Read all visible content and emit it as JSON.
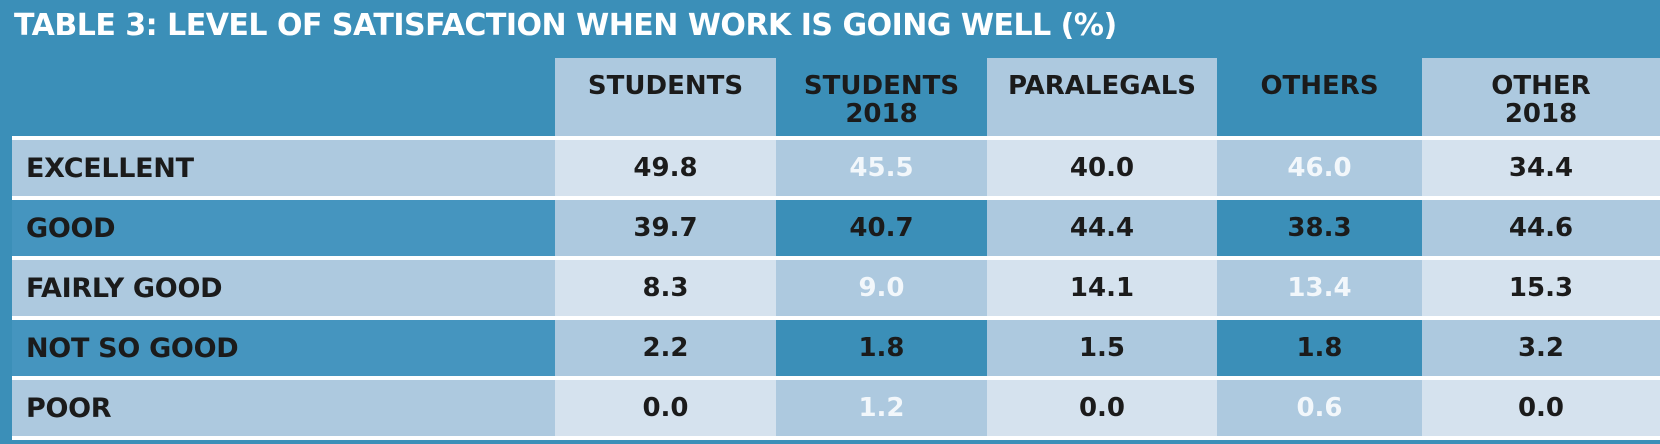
{
  "title": "TABLE 3: LEVEL OF SATISFACTION WHEN WORK IS GOING WELL (%)",
  "chart_data": {
    "type": "table",
    "title": "TABLE 3: LEVEL OF SATISFACTION WHEN WORK IS GOING WELL (%)",
    "columns": [
      {
        "line1": "STUDENTS",
        "line2": ""
      },
      {
        "line1": "STUDENTS",
        "line2": "2018"
      },
      {
        "line1": "PARALEGALS",
        "line2": ""
      },
      {
        "line1": "OTHERS",
        "line2": ""
      },
      {
        "line1": "OTHER",
        "line2": "2018"
      }
    ],
    "rows": [
      {
        "label": "EXCELLENT",
        "values": [
          "49.8",
          "45.5",
          "40.0",
          "46.0",
          "34.4"
        ]
      },
      {
        "label": "GOOD",
        "values": [
          "39.7",
          "40.7",
          "44.4",
          "38.3",
          "44.6"
        ]
      },
      {
        "label": "FAIRLY GOOD",
        "values": [
          "8.3",
          "9.0",
          "14.1",
          "13.4",
          "15.3"
        ]
      },
      {
        "label": "NOT SO GOOD",
        "values": [
          "2.2",
          "1.8",
          "1.5",
          "1.8",
          "3.2"
        ]
      },
      {
        "label": "POOR",
        "values": [
          "0.0",
          "1.2",
          "0.0",
          "0.6",
          "0.0"
        ]
      }
    ]
  },
  "colors": {
    "header_blue": "#3b8fb8",
    "mid_blue": "#adc9df",
    "light_blue": "#d5e2ee",
    "white_text": "#f2f7fb",
    "dark_text": "#1b1b1b"
  }
}
